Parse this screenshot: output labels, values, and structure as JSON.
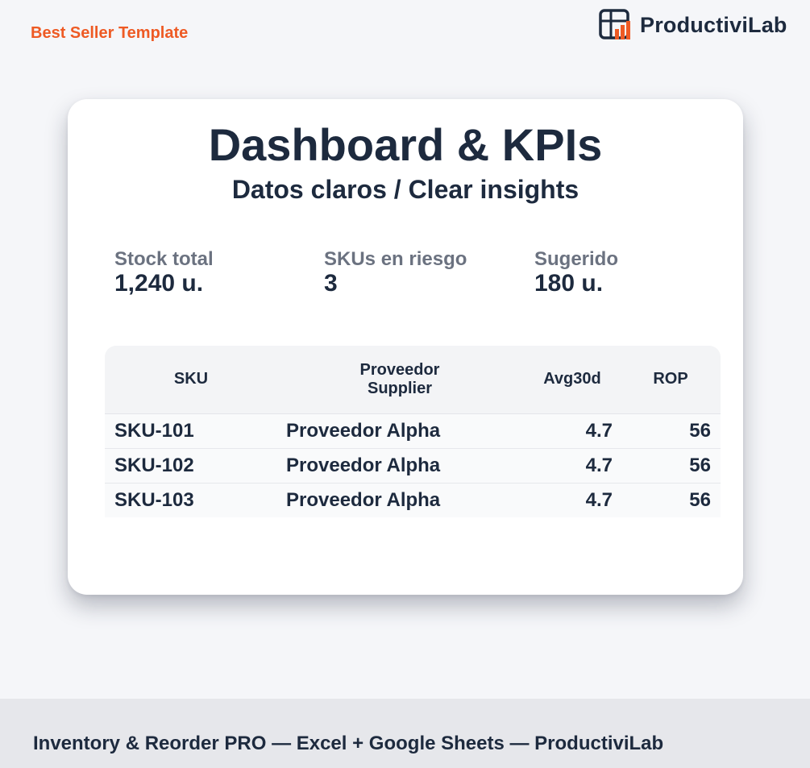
{
  "header": {
    "badge": "Best Seller Template",
    "logo_text": "ProductiviLab",
    "logo_icon": "spreadsheet-chart-logo"
  },
  "card": {
    "title": "Dashboard & KPIs",
    "subtitle": "Datos claros / Clear insights",
    "kpis": [
      {
        "label": "Stock total",
        "value": "1,240 u."
      },
      {
        "label": "SKUs en riesgo",
        "value": "3"
      },
      {
        "label": "Sugerido",
        "value": "180 u."
      }
    ],
    "table": {
      "headers": {
        "sku": "SKU",
        "proveedor_line1": "Proveedor",
        "proveedor_line2": "Supplier",
        "avg": "Avg30d",
        "rop": "ROP"
      },
      "rows": [
        {
          "sku": "SKU-101",
          "proveedor": "Proveedor Alpha",
          "avg": "4.7",
          "rop": "56"
        },
        {
          "sku": "SKU-102",
          "proveedor": "Proveedor Alpha",
          "avg": "4.7",
          "rop": "56"
        },
        {
          "sku": "SKU-103",
          "proveedor": "Proveedor Alpha",
          "avg": "4.7",
          "rop": "56"
        }
      ]
    }
  },
  "footer": {
    "text": "Inventory & Reorder PRO — Excel + Google Sheets — ProductiviLab"
  },
  "colors": {
    "accent": "#ee5a24",
    "text": "#1d2a3e",
    "muted": "#6b7280",
    "background": "#f5f6f9"
  }
}
